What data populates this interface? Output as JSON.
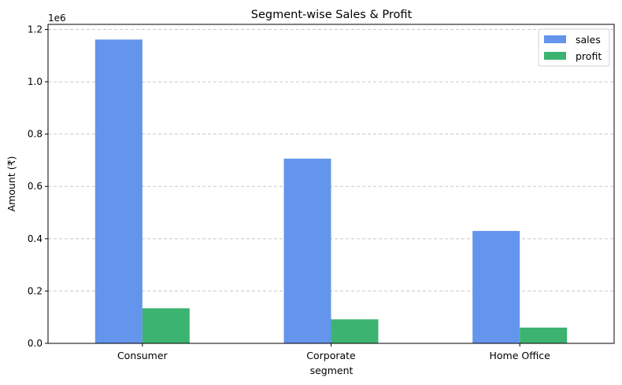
{
  "chart_data": {
    "type": "bar",
    "title": "Segment-wise Sales & Profit",
    "xlabel": "segment",
    "ylabel": "Amount (₹)",
    "offset_label": "1e6",
    "categories": [
      "Consumer",
      "Corporate",
      "Home Office"
    ],
    "series": [
      {
        "name": "sales",
        "color": "#6495ED",
        "values": [
          1161401,
          706146,
          429653
        ]
      },
      {
        "name": "profit",
        "color": "#3CB371",
        "values": [
          134119,
          91979,
          60299
        ]
      }
    ],
    "ylim": [
      0,
      1219471
    ],
    "yticks": [
      0.0,
      0.2,
      0.4,
      0.6,
      0.8,
      1.0,
      1.2
    ],
    "ytick_scale": 1000000,
    "grid": {
      "axis": "y",
      "style": "dashed",
      "color": "#c8c8c8"
    },
    "legend": "top-right"
  }
}
